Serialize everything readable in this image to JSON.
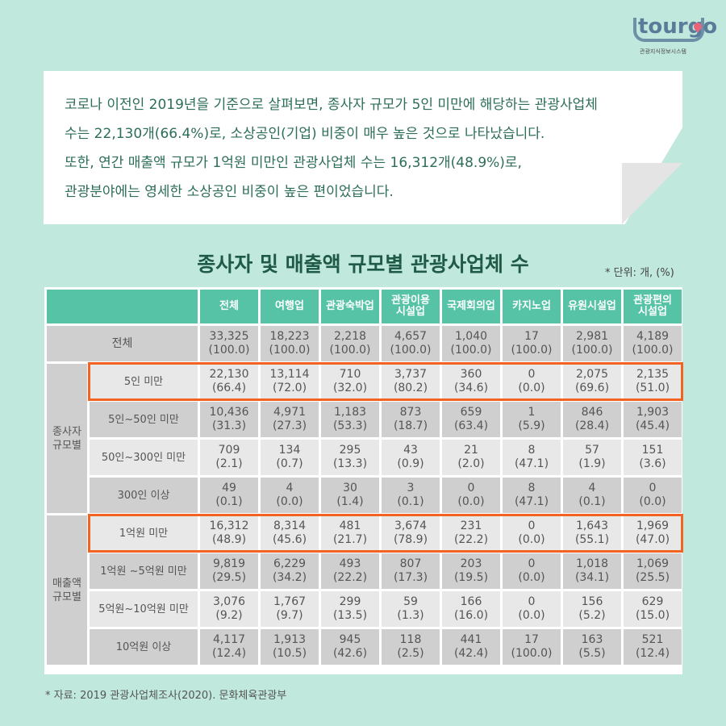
{
  "logo": {
    "word": "tourgo",
    "subtitle": "관광지식정보시스템",
    "pin_color": "#e8647a"
  },
  "note": {
    "lines": [
      "코로나 이전인 2019년을 기준으로 살펴보면, 종사자 규모가 5인 미만에 해당하는 관광사업체",
      "수는 22,130개(66.4%)로, 소상공인(기업) 비중이 매우 높은 것으로 나타났습니다.",
      "또한, 연간 매출액 규모가 1억원 미만인 관광사업체 수는 16,312개(48.9%)로,",
      "관광분야에는 영세한 소상공인 비중이 높은 편이었습니다."
    ]
  },
  "table_title": "종사자 및 매출액 규모별 관광사업체 수",
  "unit": "* 단위: 개, (%)",
  "colors": {
    "background": "#c0e8dc",
    "header": "#56c3a7",
    "title": "#1f5a47",
    "highlight": "#f26322",
    "row_dark": "#cfcfcf",
    "row_light": "#e8e8e8"
  },
  "columns": [
    "전체",
    "여행업",
    "관광숙박업",
    "관광이용 시설업",
    "국제회의업",
    "카지노업",
    "유원시설업",
    "관광편의 시설업"
  ],
  "total_row": {
    "label": "전체",
    "values": [
      "33,325",
      "18,223",
      "2,218",
      "4,657",
      "1,040",
      "17",
      "2,981",
      "4,189"
    ],
    "pcts": [
      "(100.0)",
      "(100.0)",
      "(100.0)",
      "(100.0)",
      "(100.0)",
      "(100.0)",
      "(100.0)",
      "(100.0)"
    ]
  },
  "groups": [
    {
      "label": "종사자 규모별",
      "rows": [
        {
          "label": "5인 미만",
          "highlight": true,
          "values": [
            "22,130",
            "13,114",
            "710",
            "3,737",
            "360",
            "0",
            "2,075",
            "2,135"
          ],
          "pcts": [
            "(66.4)",
            "(72.0)",
            "(32.0)",
            "(80.2)",
            "(34.6)",
            "(0.0)",
            "(69.6)",
            "(51.0)"
          ]
        },
        {
          "label": "5인~50인 미만",
          "values": [
            "10,436",
            "4,971",
            "1,183",
            "873",
            "659",
            "1",
            "846",
            "1,903"
          ],
          "pcts": [
            "(31.3)",
            "(27.3)",
            "(53.3)",
            "(18.7)",
            "(63.4)",
            "(5.9)",
            "(28.4)",
            "(45.4)"
          ]
        },
        {
          "label": "50인~300인 미만",
          "values": [
            "709",
            "134",
            "295",
            "43",
            "21",
            "8",
            "57",
            "151"
          ],
          "pcts": [
            "(2.1)",
            "(0.7)",
            "(13.3)",
            "(0.9)",
            "(2.0)",
            "(47.1)",
            "(1.9)",
            "(3.6)"
          ]
        },
        {
          "label": "300인 이상",
          "values": [
            "49",
            "4",
            "30",
            "3",
            "0",
            "8",
            "4",
            "0"
          ],
          "pcts": [
            "(0.1)",
            "(0.0)",
            "(1.4)",
            "(0.1)",
            "(0.0)",
            "(47.1)",
            "(0.1)",
            "(0.0)"
          ]
        }
      ]
    },
    {
      "label": "매출액 규모별",
      "rows": [
        {
          "label": "1억원 미만",
          "highlight": true,
          "values": [
            "16,312",
            "8,314",
            "481",
            "3,674",
            "231",
            "0",
            "1,643",
            "1,969"
          ],
          "pcts": [
            "(48.9)",
            "(45.6)",
            "(21.7)",
            "(78.9)",
            "(22.2)",
            "(0.0)",
            "(55.1)",
            "(47.0)"
          ]
        },
        {
          "label": "1억원 ~5억원 미만",
          "values": [
            "9,819",
            "6,229",
            "493",
            "807",
            "203",
            "0",
            "1,018",
            "1,069"
          ],
          "pcts": [
            "(29.5)",
            "(34.2)",
            "(22.2)",
            "(17.3)",
            "(19.5)",
            "(0.0)",
            "(34.1)",
            "(25.5)"
          ]
        },
        {
          "label": "5억원~10억원 미만",
          "values": [
            "3,076",
            "1,767",
            "299",
            "59",
            "166",
            "0",
            "156",
            "629"
          ],
          "pcts": [
            "(9.2)",
            "(9.7)",
            "(13.5)",
            "(1.3)",
            "(16.0)",
            "(0.0)",
            "(5.2)",
            "(15.0)"
          ]
        },
        {
          "label": "10억원 이상",
          "values": [
            "4,117",
            "1,913",
            "945",
            "118",
            "441",
            "17",
            "163",
            "521"
          ],
          "pcts": [
            "(12.4)",
            "(10.5)",
            "(42.6)",
            "(2.5)",
            "(42.4)",
            "(100.0)",
            "(5.5)",
            "(12.4)"
          ]
        }
      ]
    }
  ],
  "source": "* 자료: 2019 관광사업체조사(2020). 문화체육관광부"
}
